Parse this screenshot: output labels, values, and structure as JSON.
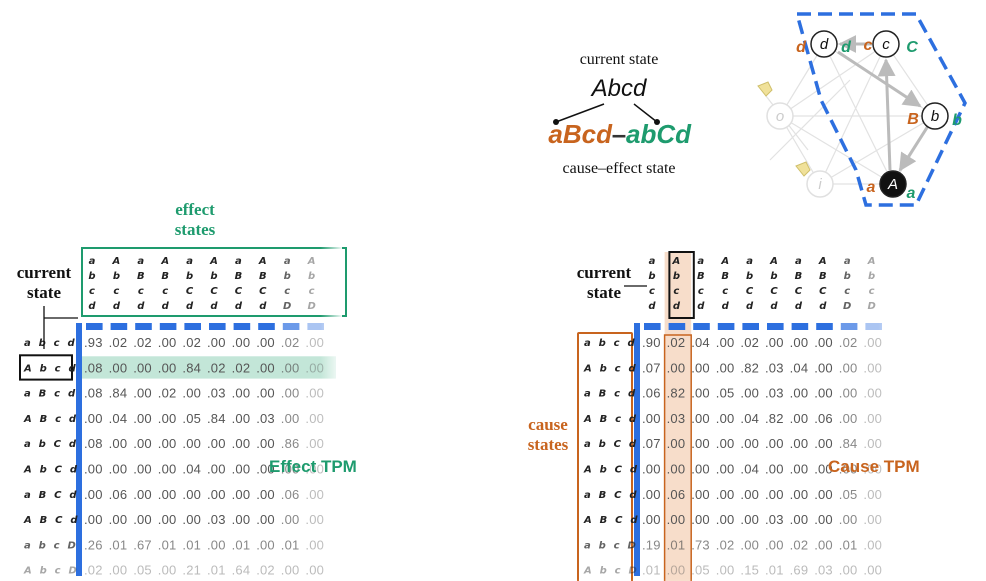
{
  "legend": {
    "top": "current state",
    "current": "Abcd",
    "cause": "aBcd",
    "dash": "–",
    "effect": "abCd",
    "bottom": "cause–effect state"
  },
  "colors": {
    "orange": "#c8641e",
    "green": "#1e9b6e",
    "blue": "#2d6fdf",
    "grey": "#bbbbbb"
  },
  "graph": {
    "nodes": [
      {
        "id": "A",
        "label": "A",
        "dark": true
      },
      {
        "id": "b",
        "label": "b",
        "dark": false
      },
      {
        "id": "c",
        "label": "c",
        "dark": false
      },
      {
        "id": "d",
        "label": "d",
        "dark": false
      },
      {
        "id": "o",
        "label": "o",
        "dark": false,
        "faded": true
      },
      {
        "id": "i",
        "label": "i",
        "dark": false,
        "faded": true
      }
    ],
    "cause_labels": {
      "A": "a",
      "b": "B",
      "c": "c",
      "d": "d"
    },
    "effect_labels": {
      "A": "a",
      "b": "b",
      "c": "C",
      "d": "d"
    }
  },
  "effect": {
    "heading_line1": "effect",
    "heading_line2": "states",
    "current_line1": "current",
    "current_line2": "state",
    "title": "Effect TPM",
    "col_states": [
      "abcd",
      "Abcd",
      "aBcd",
      "ABcd",
      "abCd",
      "AbCd",
      "aBCd",
      "ABCd",
      "abcD",
      "AbcD"
    ],
    "row_states": [
      "abcd",
      "Abcd",
      "aBcd",
      "ABcd",
      "abCd",
      "AbCd",
      "aBCd",
      "ABCd",
      "abcD",
      "AbcD"
    ],
    "highlight_row": 1,
    "rows": [
      [
        ".93",
        ".02",
        ".02",
        ".00",
        ".02",
        ".00",
        ".00",
        ".00",
        ".02",
        ".00"
      ],
      [
        ".08",
        ".00",
        ".00",
        ".00",
        ".84",
        ".02",
        ".02",
        ".00",
        ".00",
        ".00"
      ],
      [
        ".08",
        ".84",
        ".00",
        ".02",
        ".00",
        ".03",
        ".00",
        ".00",
        ".00",
        ".00"
      ],
      [
        ".00",
        ".04",
        ".00",
        ".00",
        ".05",
        ".84",
        ".00",
        ".03",
        ".00",
        ".00"
      ],
      [
        ".08",
        ".00",
        ".00",
        ".00",
        ".00",
        ".00",
        ".00",
        ".00",
        ".86",
        ".00"
      ],
      [
        ".00",
        ".00",
        ".00",
        ".00",
        ".04",
        ".00",
        ".00",
        ".00",
        ".00",
        ".00"
      ],
      [
        ".00",
        ".06",
        ".00",
        ".00",
        ".00",
        ".00",
        ".00",
        ".00",
        ".06",
        ".00"
      ],
      [
        ".00",
        ".00",
        ".00",
        ".00",
        ".00",
        ".03",
        ".00",
        ".00",
        ".00",
        ".00"
      ],
      [
        ".26",
        ".01",
        ".67",
        ".01",
        ".01",
        ".00",
        ".01",
        ".00",
        ".01",
        ".00"
      ],
      [
        ".02",
        ".00",
        ".05",
        ".00",
        ".21",
        ".01",
        ".64",
        ".02",
        ".00",
        ".00"
      ]
    ]
  },
  "cause": {
    "heading_line1": "cause",
    "heading_line2": "states",
    "current_line1": "current",
    "current_line2": "state",
    "title": "Cause TPM",
    "col_states": [
      "abcd",
      "Abcd",
      "aBcd",
      "ABcd",
      "abCd",
      "AbCd",
      "aBCd",
      "ABCd",
      "abcD",
      "AbcD"
    ],
    "row_states": [
      "abcd",
      "Abcd",
      "aBcd",
      "ABcd",
      "abCd",
      "AbCd",
      "aBCd",
      "ABCd",
      "abcD",
      "AbcD"
    ],
    "highlight_col": 1,
    "rows": [
      [
        ".90",
        ".02",
        ".04",
        ".00",
        ".02",
        ".00",
        ".00",
        ".00",
        ".02",
        ".00"
      ],
      [
        ".07",
        ".00",
        ".00",
        ".00",
        ".82",
        ".03",
        ".04",
        ".00",
        ".00",
        ".00"
      ],
      [
        ".06",
        ".82",
        ".00",
        ".05",
        ".00",
        ".03",
        ".00",
        ".00",
        ".00",
        ".00"
      ],
      [
        ".00",
        ".03",
        ".00",
        ".00",
        ".04",
        ".82",
        ".00",
        ".06",
        ".00",
        ".00"
      ],
      [
        ".07",
        ".00",
        ".00",
        ".00",
        ".00",
        ".00",
        ".00",
        ".00",
        ".84",
        ".00"
      ],
      [
        ".00",
        ".00",
        ".00",
        ".00",
        ".04",
        ".00",
        ".00",
        ".00",
        ".00",
        ".00"
      ],
      [
        ".00",
        ".06",
        ".00",
        ".00",
        ".00",
        ".00",
        ".00",
        ".00",
        ".05",
        ".00"
      ],
      [
        ".00",
        ".00",
        ".00",
        ".00",
        ".00",
        ".03",
        ".00",
        ".00",
        ".00",
        ".00"
      ],
      [
        ".19",
        ".01",
        ".73",
        ".02",
        ".00",
        ".00",
        ".02",
        ".00",
        ".01",
        ".00"
      ],
      [
        ".01",
        ".00",
        ".05",
        ".00",
        ".15",
        ".01",
        ".69",
        ".03",
        ".00",
        ".00"
      ]
    ]
  }
}
